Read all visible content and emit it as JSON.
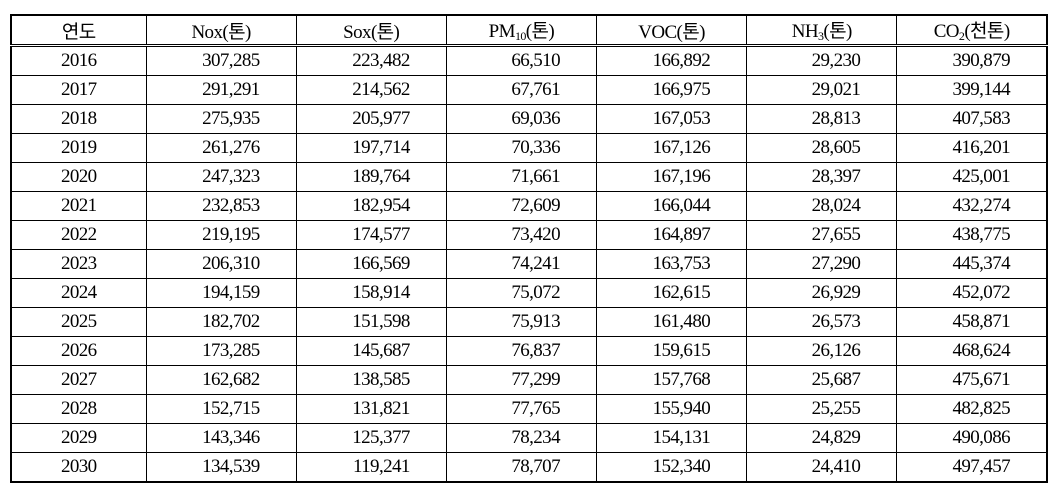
{
  "table": {
    "header": [
      "연도",
      "Nox(톤)",
      "Sox(톤)",
      [
        "PM",
        "10",
        "(톤)"
      ],
      "VOC(톤)",
      [
        "NH",
        "3",
        "(톤)"
      ],
      [
        "CO",
        "2",
        "(천톤)"
      ]
    ],
    "rows": [
      [
        "2016",
        "307,285",
        "223,482",
        "66,510",
        "166,892",
        "29,230",
        "390,879"
      ],
      [
        "2017",
        "291,291",
        "214,562",
        "67,761",
        "166,975",
        "29,021",
        "399,144"
      ],
      [
        "2018",
        "275,935",
        "205,977",
        "69,036",
        "167,053",
        "28,813",
        "407,583"
      ],
      [
        "2019",
        "261,276",
        "197,714",
        "70,336",
        "167,126",
        "28,605",
        "416,201"
      ],
      [
        "2020",
        "247,323",
        "189,764",
        "71,661",
        "167,196",
        "28,397",
        "425,001"
      ],
      [
        "2021",
        "232,853",
        "182,954",
        "72,609",
        "166,044",
        "28,024",
        "432,274"
      ],
      [
        "2022",
        "219,195",
        "174,577",
        "73,420",
        "164,897",
        "27,655",
        "438,775"
      ],
      [
        "2023",
        "206,310",
        "166,569",
        "74,241",
        "163,753",
        "27,290",
        "445,374"
      ],
      [
        "2024",
        "194,159",
        "158,914",
        "75,072",
        "162,615",
        "26,929",
        "452,072"
      ],
      [
        "2025",
        "182,702",
        "151,598",
        "75,913",
        "161,480",
        "26,573",
        "458,871"
      ],
      [
        "2026",
        "173,285",
        "145,687",
        "76,837",
        "159,615",
        "26,126",
        "468,624"
      ],
      [
        "2027",
        "162,682",
        "138,585",
        "77,299",
        "157,768",
        "25,687",
        "475,671"
      ],
      [
        "2028",
        "152,715",
        "131,821",
        "77,765",
        "155,940",
        "25,255",
        "482,825"
      ],
      [
        "2029",
        "143,346",
        "125,377",
        "78,234",
        "154,131",
        "24,829",
        "490,086"
      ],
      [
        "2030",
        "134,539",
        "119,241",
        "78,707",
        "152,340",
        "24,410",
        "497,457"
      ]
    ]
  }
}
